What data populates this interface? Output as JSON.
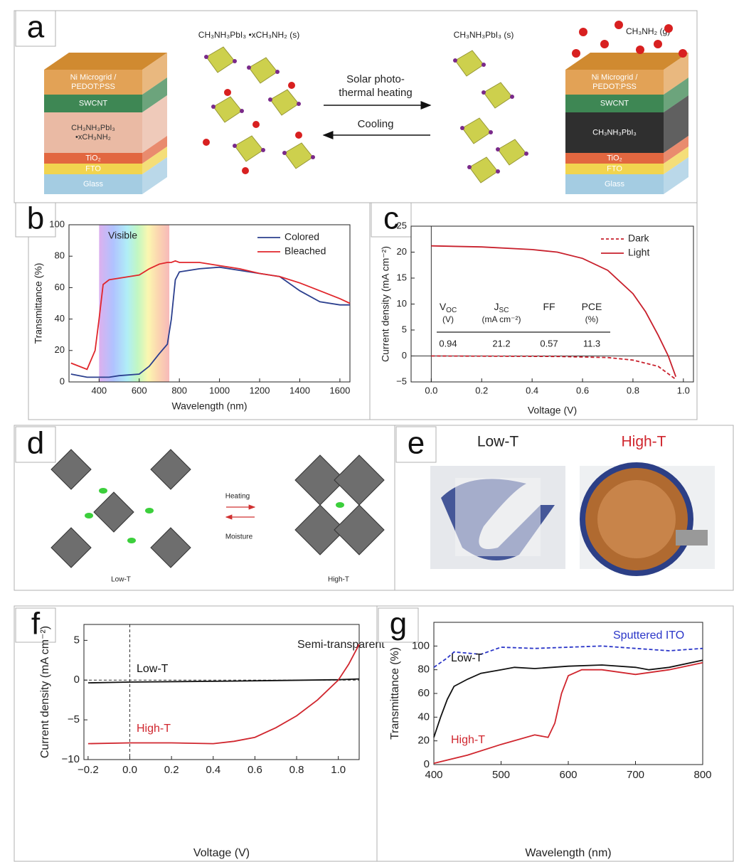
{
  "panels": {
    "a": {
      "label": "a",
      "left_stack": [
        [
          "Ni Microgrid /",
          "PEDOT:PSS"
        ],
        [
          "SWCNT"
        ],
        [
          "CH₃NH₃PbI₃",
          "•xCH₃NH₂"
        ],
        [
          "TiO₂"
        ],
        [
          "FTO"
        ],
        [
          "Glass"
        ]
      ],
      "left_crystal": "CH₃NH₃PbI₃ •xCH₃NH₂ (s)",
      "forward": [
        "Solar photo-",
        "thermal heating"
      ],
      "backward": "Cooling",
      "right_crystal": "CH₃NH₃PbI₃ (s)",
      "gas": "CH₃NH₂ (g)",
      "right_stack": [
        [
          "Ni Microgrid /",
          "PEDOT:PSS"
        ],
        [
          "SWCNT"
        ],
        [
          "CH₃NH₃PbI₃"
        ],
        [
          "TiO₂"
        ],
        [
          "FTO"
        ],
        [
          "Glass"
        ]
      ]
    },
    "d": {
      "label": "d",
      "forward": "Heating",
      "backward": "Moisture",
      "left": "Low-T",
      "right": "High-T"
    },
    "e": {
      "label": "e",
      "left": "Low-T",
      "right": "High-T"
    }
  },
  "chart_data": [
    {
      "panel": "b",
      "type": "line",
      "xlabel": "Wavelength (nm)",
      "ylabel": "Transmittance (%)",
      "annotation": "Visible",
      "shaded_range": [
        400,
        750
      ],
      "xlim": [
        250,
        1650
      ],
      "xticks": [
        400,
        600,
        800,
        1000,
        1200,
        1400,
        1600
      ],
      "ylim": [
        0,
        100
      ],
      "yticks": [
        0,
        20,
        40,
        60,
        80,
        100
      ],
      "legend": "upper right",
      "x": [
        260,
        340,
        380,
        400,
        420,
        450,
        500,
        600,
        650,
        700,
        740,
        760,
        780,
        800,
        900,
        1000,
        1100,
        1200,
        1300,
        1400,
        1500,
        1600,
        1650
      ],
      "series": [
        {
          "name": "Colored",
          "color": "#2b3f8e",
          "values": [
            5,
            3,
            3,
            3,
            3,
            3,
            4,
            5,
            10,
            18,
            24,
            40,
            65,
            70,
            72,
            73,
            71,
            69,
            67,
            58,
            51,
            49,
            49
          ]
        },
        {
          "name": "Bleached",
          "color": "#e0262b",
          "values": [
            12,
            8,
            20,
            40,
            62,
            65,
            66,
            68,
            72,
            75,
            76,
            76,
            77,
            76,
            76,
            74,
            72,
            69,
            67,
            63,
            58,
            53,
            50
          ]
        }
      ]
    },
    {
      "panel": "c",
      "type": "line",
      "xlabel": "Voltage (V)",
      "ylabel": "Current density (mA cm⁻²)",
      "xlim": [
        -0.08,
        1.04
      ],
      "xticks": [
        {
          "value": 0,
          "label": "0.0"
        },
        0.2,
        0.4,
        0.6,
        0.8,
        {
          "value": 1,
          "label": "1.0"
        }
      ],
      "ylim": [
        -5,
        25
      ],
      "yticks": [
        {
          "value": -5,
          "label": "−5"
        },
        0,
        5,
        10,
        15,
        20,
        25
      ],
      "zero_lines": "solid",
      "legend": "upper right",
      "table": {
        "headers": [
          {
            "main": "V",
            "sub": "OC",
            "unit": "(V)"
          },
          {
            "main": "J",
            "sub": "SC",
            "unit": "(mA cm⁻²)"
          },
          {
            "main": "FF"
          },
          {
            "main": "PCE",
            "unit": "(%)"
          }
        ],
        "values": [
          0.94,
          21.2,
          0.57,
          11.3
        ]
      },
      "series": [
        {
          "name": "Dark",
          "color": "#c8202c",
          "linestyle": "dashed",
          "x": [
            0,
            0.5,
            0.7,
            0.8,
            0.9,
            0.97
          ],
          "values": [
            0,
            -0.1,
            -0.3,
            -0.8,
            -2,
            -4.5
          ]
        },
        {
          "name": "Light",
          "color": "#c8202c",
          "linestyle": "solid",
          "x": [
            0,
            0.2,
            0.4,
            0.5,
            0.6,
            0.7,
            0.8,
            0.85,
            0.9,
            0.94,
            0.97
          ],
          "values": [
            21.2,
            21,
            20.5,
            20,
            18.8,
            16.5,
            12,
            8.5,
            4,
            0,
            -4
          ]
        }
      ]
    },
    {
      "panel": "f",
      "type": "line",
      "xlabel": "Voltage (V)",
      "ylabel": "Current density (mA cm⁻²)",
      "annotation": "Semi-transparent",
      "xlim": [
        -0.22,
        1.1
      ],
      "xticks": [
        {
          "value": -0.2,
          "label": "−0.2"
        },
        {
          "value": 0,
          "label": "0.0"
        },
        0.2,
        0.4,
        0.6,
        0.8,
        {
          "value": 1,
          "label": "1.0"
        }
      ],
      "ylim": [
        -10,
        7
      ],
      "yticks": [
        {
          "value": -10,
          "label": "−10"
        },
        {
          "value": -5,
          "label": "−5"
        },
        0,
        5
      ],
      "zero_lines": "dashed",
      "series": [
        {
          "name": "Low-T",
          "color": "#111111",
          "x": [
            -0.2,
            0,
            0.5,
            1.0,
            1.1
          ],
          "values": [
            -0.35,
            -0.25,
            -0.12,
            0.05,
            0.15
          ]
        },
        {
          "name": "High-T",
          "color": "#d0262e",
          "x": [
            -0.2,
            0,
            0.2,
            0.4,
            0.5,
            0.6,
            0.7,
            0.8,
            0.9,
            1.0,
            1.05,
            1.1
          ],
          "values": [
            -8,
            -7.9,
            -7.9,
            -8,
            -7.7,
            -7.2,
            -6,
            -4.5,
            -2.5,
            0,
            2,
            4.5
          ]
        }
      ]
    },
    {
      "panel": "g",
      "type": "line",
      "xlabel": "Wavelength (nm)",
      "ylabel": "Transmittance (%)",
      "xlim": [
        400,
        800
      ],
      "xticks": [
        400,
        500,
        600,
        700,
        800
      ],
      "ylim": [
        0,
        120
      ],
      "yticks": [
        0,
        20,
        40,
        60,
        80,
        100
      ],
      "series": [
        {
          "name": "Sputtered ITO",
          "color": "#2a35c8",
          "linestyle": "dashed",
          "x": [
            400,
            420,
            430,
            450,
            470,
            500,
            550,
            600,
            650,
            700,
            750,
            800
          ],
          "values": [
            82,
            90,
            95,
            94,
            93,
            99,
            98,
            99,
            100,
            98,
            96,
            98
          ]
        },
        {
          "name": "Low-T",
          "color": "#111111",
          "x": [
            400,
            410,
            420,
            430,
            450,
            470,
            500,
            520,
            550,
            600,
            650,
            700,
            720,
            750,
            800
          ],
          "values": [
            23,
            40,
            55,
            66,
            72,
            77,
            80,
            82,
            81,
            83,
            84,
            82,
            80,
            82,
            88
          ]
        },
        {
          "name": "High-T",
          "color": "#d0262e",
          "x": [
            400,
            450,
            500,
            550,
            570,
            580,
            590,
            600,
            620,
            650,
            700,
            750,
            800
          ],
          "values": [
            1,
            8,
            17,
            25,
            23,
            35,
            60,
            75,
            80,
            80,
            76,
            80,
            86
          ]
        }
      ]
    }
  ]
}
